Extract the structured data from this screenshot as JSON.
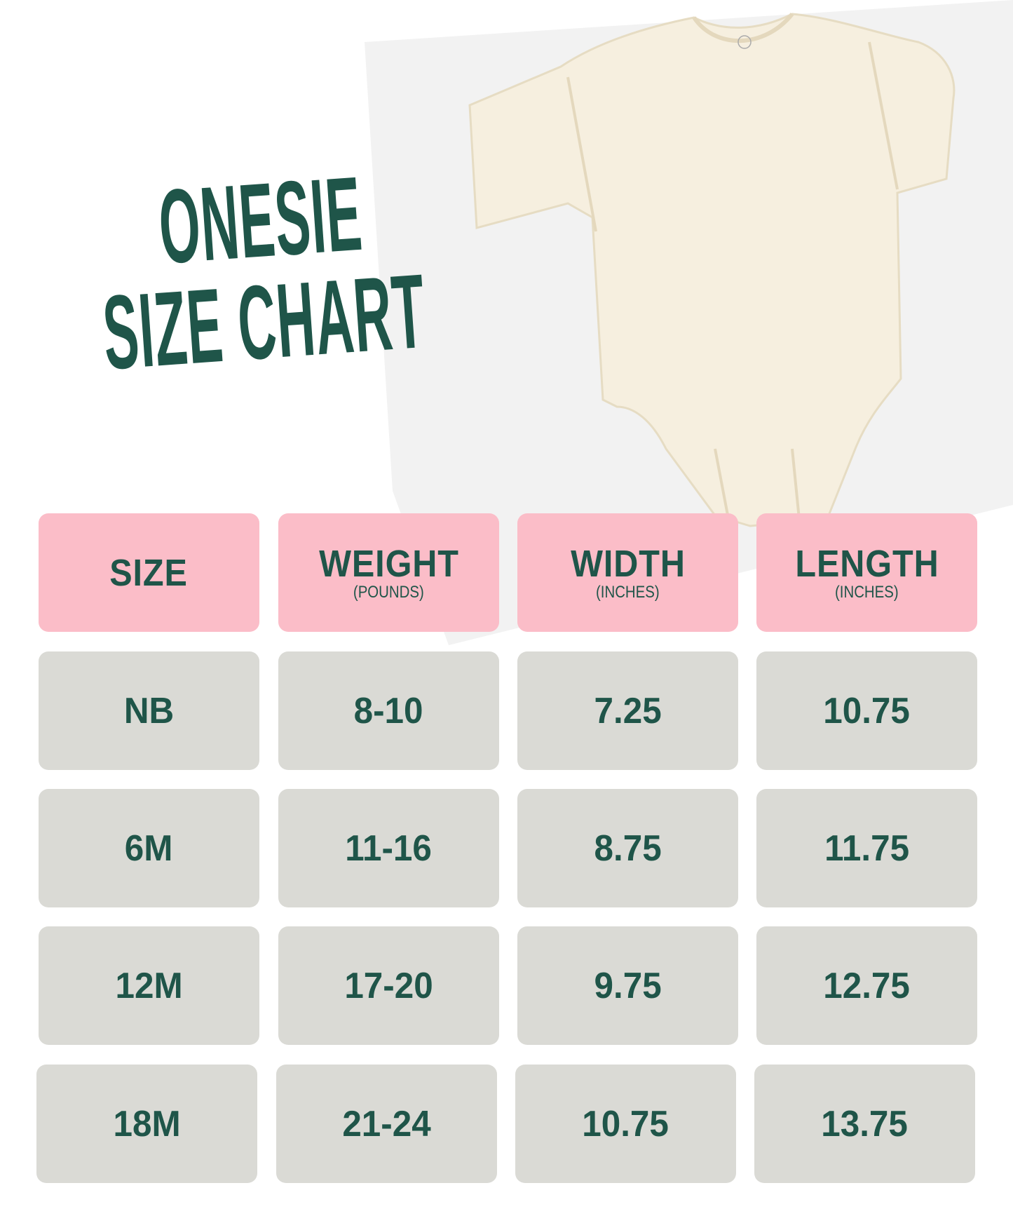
{
  "title": {
    "line1": "ONESIE",
    "line2": "SIZE CHART"
  },
  "colors": {
    "text": "#1f5549",
    "header_bg": "#fbbdc8",
    "cell_bg": "#dadad5",
    "garment": "#f6efdf"
  },
  "table": {
    "headers": [
      {
        "label": "SIZE",
        "unit": ""
      },
      {
        "label": "WEIGHT",
        "unit": "(POUNDS)"
      },
      {
        "label": "WIDTH",
        "unit": "(INCHES)"
      },
      {
        "label": "LENGTH",
        "unit": "(INCHES)"
      }
    ],
    "rows": [
      [
        "NB",
        "8-10",
        "7.25",
        "10.75"
      ],
      [
        "6M",
        "11-16",
        "8.75",
        "11.75"
      ],
      [
        "12M",
        "17-20",
        "9.75",
        "12.75"
      ],
      [
        "18M",
        "21-24",
        "10.75",
        "13.75"
      ]
    ]
  }
}
